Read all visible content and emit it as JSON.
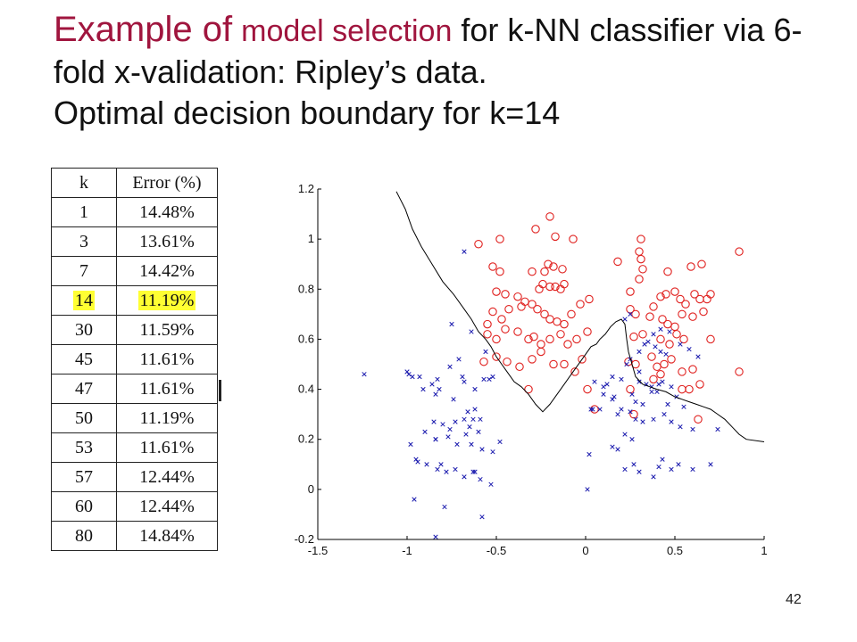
{
  "slide": {
    "title": {
      "part1": "Example of",
      "part2": "model selection",
      "part3": "for k-NN classifier via 6-fold x-validation: Ripley’s data.",
      "part4": "Optimal decision boundary for k=14"
    },
    "page_number": "42"
  },
  "table": {
    "headers": [
      "k",
      "Error (%)"
    ],
    "highlight_color": "#FFFF33",
    "rows": [
      {
        "k": "1",
        "error": "14.48%"
      },
      {
        "k": "3",
        "error": "13.61%"
      },
      {
        "k": "7",
        "error": "14.42%"
      },
      {
        "k": "14",
        "error": "11.19%",
        "highlight": true
      },
      {
        "k": "30",
        "error": "11.59%"
      },
      {
        "k": "45",
        "error": "11.61%"
      },
      {
        "k": "47",
        "error": "11.61%"
      },
      {
        "k": "50",
        "error": "11.19%"
      },
      {
        "k": "53",
        "error": "11.61%"
      },
      {
        "k": "57",
        "error": "12.44%"
      },
      {
        "k": "60",
        "error": "12.44%"
      },
      {
        "k": "80",
        "error": "14.84%"
      }
    ]
  },
  "chart_data": {
    "type": "scatter",
    "xlim": [
      -1.5,
      1
    ],
    "ylim": [
      -0.2,
      1.2
    ],
    "x_ticks": [
      "-1.5",
      "-1",
      "-0.5",
      "0",
      "0.5",
      "1"
    ],
    "y_ticks": [
      "-0.2",
      "0",
      "0.2",
      "0.4",
      "0.6",
      "0.8",
      "1",
      "1.2"
    ],
    "grid": false,
    "colors": {
      "class_o": "#E0201E",
      "class_x": "#1A1AAE",
      "boundary": "#000000"
    },
    "series": [
      {
        "marker": "o",
        "points": [
          [
            -0.6,
            0.98
          ],
          [
            -0.48,
            1.0
          ],
          [
            -0.28,
            1.04
          ],
          [
            -0.2,
            1.09
          ],
          [
            -0.17,
            1.01
          ],
          [
            -0.07,
            1.0
          ],
          [
            0.18,
            0.91
          ],
          [
            0.3,
            0.95
          ],
          [
            0.31,
            1.0
          ],
          [
            0.86,
            0.95
          ],
          [
            -0.52,
            0.89
          ],
          [
            -0.48,
            0.87
          ],
          [
            -0.3,
            0.87
          ],
          [
            -0.23,
            0.87
          ],
          [
            -0.21,
            0.9
          ],
          [
            -0.18,
            0.89
          ],
          [
            -0.13,
            0.88
          ],
          [
            0.31,
            0.92
          ],
          [
            0.32,
            0.88
          ],
          [
            0.46,
            0.87
          ],
          [
            0.59,
            0.89
          ],
          [
            0.65,
            0.9
          ],
          [
            -0.5,
            0.79
          ],
          [
            -0.45,
            0.78
          ],
          [
            -0.38,
            0.77
          ],
          [
            -0.34,
            0.75
          ],
          [
            -0.26,
            0.8
          ],
          [
            -0.24,
            0.82
          ],
          [
            -0.2,
            0.81
          ],
          [
            -0.17,
            0.81
          ],
          [
            -0.14,
            0.8
          ],
          [
            -0.12,
            0.82
          ],
          [
            -0.03,
            0.74
          ],
          [
            0.02,
            0.76
          ],
          [
            0.25,
            0.79
          ],
          [
            0.3,
            0.84
          ],
          [
            0.42,
            0.77
          ],
          [
            0.45,
            0.78
          ],
          [
            0.5,
            0.79
          ],
          [
            0.53,
            0.76
          ],
          [
            0.56,
            0.74
          ],
          [
            0.61,
            0.78
          ],
          [
            0.64,
            0.76
          ],
          [
            0.68,
            0.76
          ],
          [
            0.7,
            0.78
          ],
          [
            -0.55,
            0.66
          ],
          [
            -0.52,
            0.71
          ],
          [
            -0.47,
            0.68
          ],
          [
            -0.43,
            0.72
          ],
          [
            -0.36,
            0.73
          ],
          [
            -0.3,
            0.74
          ],
          [
            -0.27,
            0.72
          ],
          [
            -0.23,
            0.7
          ],
          [
            -0.2,
            0.68
          ],
          [
            -0.16,
            0.67
          ],
          [
            -0.12,
            0.66
          ],
          [
            -0.08,
            0.7
          ],
          [
            0.25,
            0.72
          ],
          [
            0.28,
            0.7
          ],
          [
            0.36,
            0.69
          ],
          [
            0.38,
            0.73
          ],
          [
            0.43,
            0.68
          ],
          [
            0.46,
            0.66
          ],
          [
            0.5,
            0.65
          ],
          [
            0.54,
            0.7
          ],
          [
            0.6,
            0.69
          ],
          [
            0.66,
            0.71
          ],
          [
            -0.55,
            0.62
          ],
          [
            -0.5,
            0.6
          ],
          [
            -0.45,
            0.64
          ],
          [
            -0.38,
            0.63
          ],
          [
            -0.32,
            0.6
          ],
          [
            -0.29,
            0.61
          ],
          [
            -0.25,
            0.58
          ],
          [
            -0.2,
            0.6
          ],
          [
            -0.14,
            0.62
          ],
          [
            -0.1,
            0.58
          ],
          [
            -0.05,
            0.6
          ],
          [
            0.01,
            0.63
          ],
          [
            0.27,
            0.61
          ],
          [
            0.32,
            0.62
          ],
          [
            0.42,
            0.6
          ],
          [
            0.47,
            0.58
          ],
          [
            0.51,
            0.62
          ],
          [
            0.55,
            0.6
          ],
          [
            0.7,
            0.6
          ],
          [
            -0.57,
            0.51
          ],
          [
            -0.5,
            0.53
          ],
          [
            -0.44,
            0.51
          ],
          [
            -0.37,
            0.49
          ],
          [
            -0.3,
            0.52
          ],
          [
            -0.25,
            0.55
          ],
          [
            -0.18,
            0.5
          ],
          [
            -0.12,
            0.5
          ],
          [
            -0.06,
            0.47
          ],
          [
            -0.02,
            0.52
          ],
          [
            0.24,
            0.51
          ],
          [
            0.28,
            0.5
          ],
          [
            0.37,
            0.53
          ],
          [
            0.4,
            0.49
          ],
          [
            0.44,
            0.5
          ],
          [
            0.48,
            0.52
          ],
          [
            0.54,
            0.47
          ],
          [
            0.6,
            0.48
          ],
          [
            -0.32,
            0.4
          ],
          [
            0.01,
            0.4
          ],
          [
            0.25,
            0.4
          ],
          [
            0.38,
            0.44
          ],
          [
            0.42,
            0.46
          ],
          [
            0.54,
            0.4
          ],
          [
            0.58,
            0.4
          ],
          [
            0.64,
            0.42
          ],
          [
            0.86,
            0.47
          ],
          [
            0.27,
            0.3
          ],
          [
            0.63,
            0.28
          ],
          [
            0.05,
            0.32
          ]
        ]
      },
      {
        "marker": "x",
        "points": [
          [
            -1.24,
            0.46
          ],
          [
            -1.0,
            0.47
          ],
          [
            -0.99,
            0.46
          ],
          [
            -0.93,
            0.45
          ],
          [
            -0.91,
            0.4
          ],
          [
            -0.86,
            0.42
          ],
          [
            -0.84,
            0.38
          ],
          [
            -0.83,
            0.44
          ],
          [
            -0.76,
            0.49
          ],
          [
            -0.71,
            0.52
          ],
          [
            -0.68,
            0.43
          ],
          [
            -0.62,
            0.4
          ],
          [
            -0.57,
            0.44
          ],
          [
            -0.54,
            0.44
          ],
          [
            -0.82,
            0.4
          ],
          [
            -0.74,
            0.36
          ],
          [
            -0.66,
            0.31
          ],
          [
            -0.63,
            0.28
          ],
          [
            -0.62,
            0.32
          ],
          [
            -0.85,
            0.27
          ],
          [
            -0.8,
            0.26
          ],
          [
            -0.76,
            0.24
          ],
          [
            -0.73,
            0.27
          ],
          [
            -0.68,
            0.28
          ],
          [
            -0.65,
            0.25
          ],
          [
            -0.59,
            0.28
          ],
          [
            -0.9,
            0.23
          ],
          [
            -0.84,
            0.2
          ],
          [
            -0.77,
            0.21
          ],
          [
            -0.72,
            0.18
          ],
          [
            -0.67,
            0.22
          ],
          [
            -0.64,
            0.18
          ],
          [
            -0.6,
            0.23
          ],
          [
            -0.58,
            0.16
          ],
          [
            -0.52,
            0.15
          ],
          [
            -0.48,
            0.19
          ],
          [
            -0.98,
            0.18
          ],
          [
            -0.95,
            0.12
          ],
          [
            -0.89,
            0.1
          ],
          [
            -0.83,
            0.08
          ],
          [
            -0.78,
            0.07
          ],
          [
            -0.73,
            0.08
          ],
          [
            -0.68,
            0.05
          ],
          [
            -0.63,
            0.07
          ],
          [
            -0.59,
            0.04
          ],
          [
            -0.53,
            0.02
          ],
          [
            -0.94,
            0.11
          ],
          [
            -0.81,
            0.1
          ],
          [
            -0.62,
            0.07
          ],
          [
            -0.96,
            -0.04
          ],
          [
            -0.79,
            -0.07
          ],
          [
            -0.58,
            -0.11
          ],
          [
            -0.84,
            -0.19
          ],
          [
            -0.69,
            0.45
          ],
          [
            -0.68,
            0.95
          ],
          [
            -0.75,
            0.66
          ],
          [
            -0.64,
            0.63
          ],
          [
            -0.56,
            0.55
          ],
          [
            -0.52,
            0.45
          ],
          [
            0.08,
            0.32
          ],
          [
            0.04,
            0.32
          ],
          [
            0.1,
            0.38
          ],
          [
            0.12,
            0.42
          ],
          [
            0.15,
            0.45
          ],
          [
            0.2,
            0.44
          ],
          [
            0.23,
            0.5
          ],
          [
            0.25,
            0.52
          ],
          [
            0.3,
            0.55
          ],
          [
            0.33,
            0.58
          ],
          [
            0.39,
            0.57
          ],
          [
            0.42,
            0.55
          ],
          [
            0.45,
            0.54
          ],
          [
            0.3,
            0.47
          ],
          [
            0.3,
            0.43
          ],
          [
            0.34,
            0.42
          ],
          [
            0.37,
            0.39
          ],
          [
            0.4,
            0.39
          ],
          [
            0.43,
            0.43
          ],
          [
            0.48,
            0.41
          ],
          [
            0.51,
            0.37
          ],
          [
            0.55,
            0.33
          ],
          [
            0.26,
            0.38
          ],
          [
            0.28,
            0.35
          ],
          [
            0.32,
            0.34
          ],
          [
            0.2,
            0.32
          ],
          [
            0.25,
            0.31
          ],
          [
            0.28,
            0.28
          ],
          [
            0.32,
            0.27
          ],
          [
            0.38,
            0.28
          ],
          [
            0.44,
            0.3
          ],
          [
            0.48,
            0.27
          ],
          [
            0.53,
            0.25
          ],
          [
            0.6,
            0.24
          ],
          [
            0.22,
            0.22
          ],
          [
            0.26,
            0.2
          ],
          [
            0.18,
            0.16
          ],
          [
            0.15,
            0.17
          ],
          [
            0.02,
            0.14
          ],
          [
            0.22,
            0.08
          ],
          [
            0.27,
            0.1
          ],
          [
            0.3,
            0.07
          ],
          [
            0.38,
            0.05
          ],
          [
            0.41,
            0.09
          ],
          [
            0.43,
            0.12
          ],
          [
            0.48,
            0.08
          ],
          [
            0.52,
            0.1
          ],
          [
            0.6,
            0.08
          ],
          [
            0.7,
            0.1
          ],
          [
            0.05,
            0.43
          ],
          [
            0.1,
            0.41
          ],
          [
            0.15,
            0.36
          ],
          [
            0.18,
            0.3
          ],
          [
            0.22,
            0.68
          ],
          [
            0.25,
            0.7
          ],
          [
            0.35,
            0.59
          ],
          [
            0.38,
            0.62
          ],
          [
            0.42,
            0.64
          ],
          [
            0.47,
            0.63
          ],
          [
            0.53,
            0.58
          ],
          [
            0.58,
            0.56
          ],
          [
            0.63,
            0.53
          ],
          [
            0.03,
            0.32
          ],
          [
            0.16,
            0.37
          ],
          [
            0.37,
            0.41
          ],
          [
            0.41,
            0.42
          ],
          [
            0.46,
            0.34
          ],
          [
            0.74,
            0.24
          ],
          [
            0.01,
            0.0
          ],
          [
            -0.84,
            0.2
          ],
          [
            -0.97,
            0.45
          ]
        ]
      },
      {
        "marker": "line",
        "points": [
          [
            -1.06,
            1.19
          ],
          [
            -1.01,
            1.12
          ],
          [
            -0.97,
            1.04
          ],
          [
            -0.92,
            0.97
          ],
          [
            -0.86,
            0.9
          ],
          [
            -0.8,
            0.83
          ],
          [
            -0.74,
            0.78
          ],
          [
            -0.68,
            0.72
          ],
          [
            -0.64,
            0.68
          ],
          [
            -0.6,
            0.63
          ],
          [
            -0.56,
            0.6
          ],
          [
            -0.53,
            0.57
          ],
          [
            -0.5,
            0.53
          ],
          [
            -0.47,
            0.5
          ],
          [
            -0.44,
            0.47
          ],
          [
            -0.4,
            0.43
          ],
          [
            -0.36,
            0.41
          ],
          [
            -0.32,
            0.38
          ],
          [
            -0.28,
            0.34
          ],
          [
            -0.24,
            0.31
          ],
          [
            -0.2,
            0.34
          ],
          [
            -0.15,
            0.39
          ],
          [
            -0.11,
            0.43
          ],
          [
            -0.08,
            0.46
          ],
          [
            -0.05,
            0.49
          ],
          [
            -0.02,
            0.52
          ],
          [
            0.0,
            0.54
          ],
          [
            0.03,
            0.57
          ],
          [
            0.06,
            0.58
          ],
          [
            0.08,
            0.6
          ],
          [
            0.11,
            0.62
          ],
          [
            0.14,
            0.65
          ],
          [
            0.17,
            0.67
          ],
          [
            0.2,
            0.68
          ],
          [
            0.22,
            0.66
          ],
          [
            0.23,
            0.6
          ],
          [
            0.24,
            0.55
          ],
          [
            0.26,
            0.5
          ],
          [
            0.28,
            0.45
          ],
          [
            0.32,
            0.42
          ],
          [
            0.36,
            0.41
          ],
          [
            0.4,
            0.4
          ],
          [
            0.45,
            0.39
          ],
          [
            0.5,
            0.37
          ],
          [
            0.54,
            0.36
          ],
          [
            0.58,
            0.35
          ],
          [
            0.62,
            0.34
          ],
          [
            0.66,
            0.33
          ],
          [
            0.7,
            0.32
          ],
          [
            0.74,
            0.3
          ],
          [
            0.78,
            0.28
          ],
          [
            0.82,
            0.25
          ],
          [
            0.86,
            0.22
          ],
          [
            0.9,
            0.2
          ],
          [
            1.0,
            0.19
          ]
        ]
      }
    ]
  }
}
